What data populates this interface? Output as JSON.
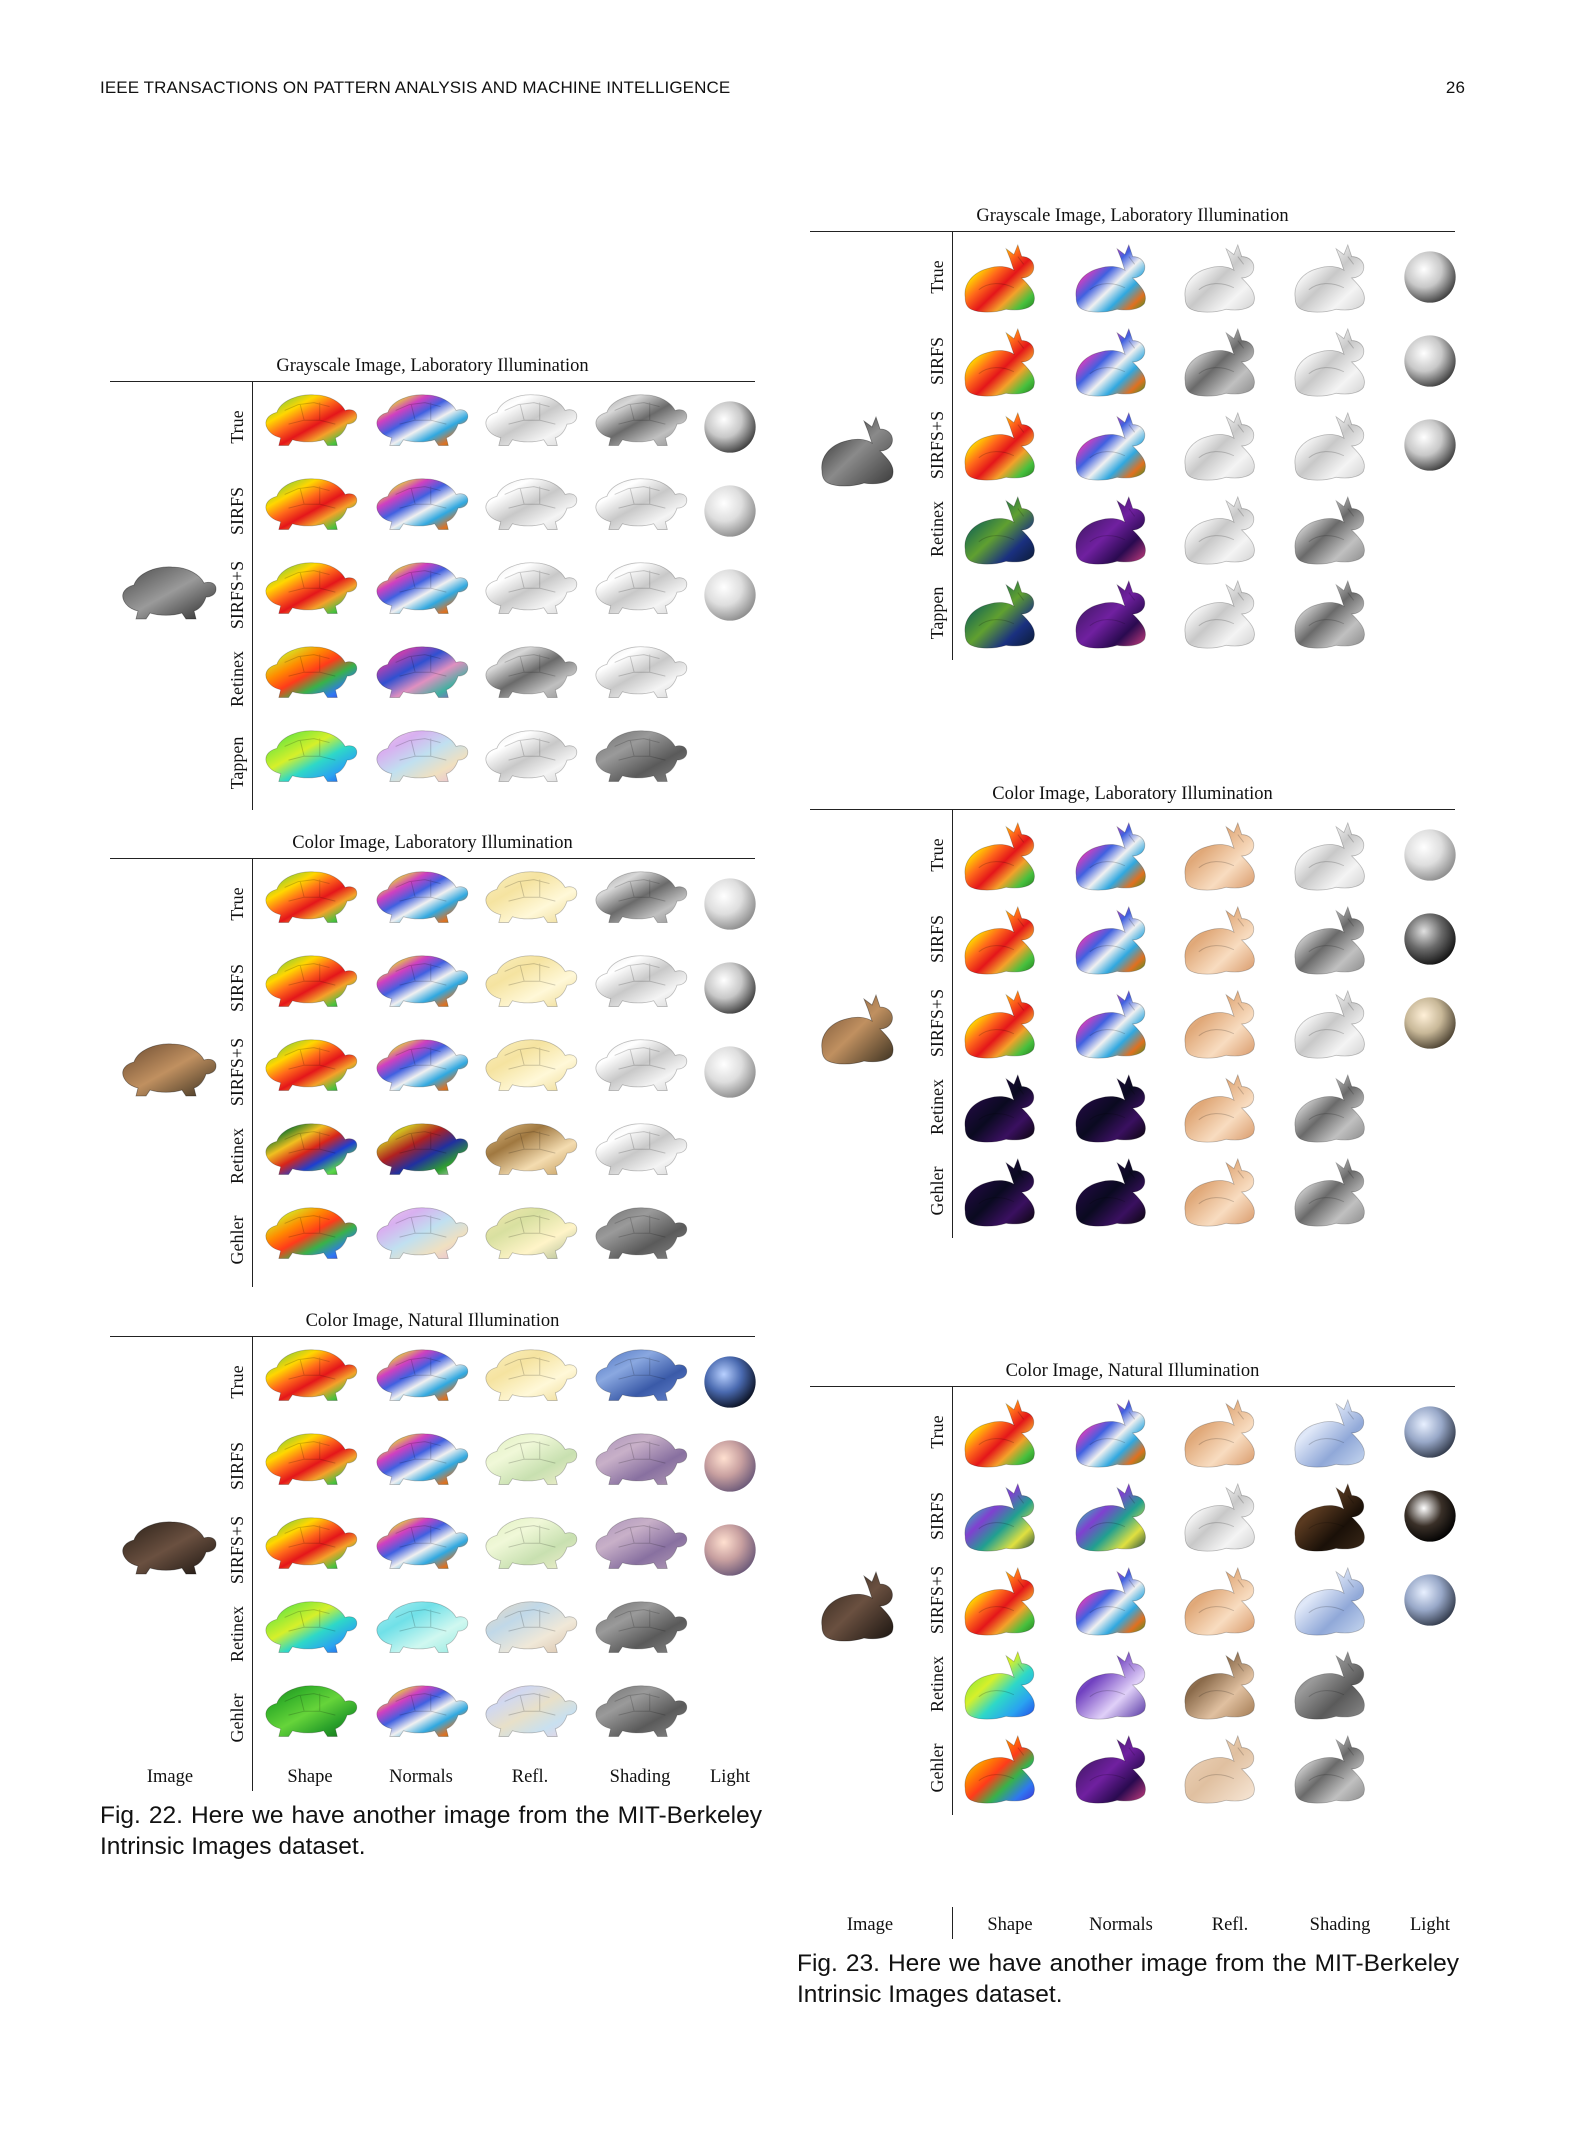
{
  "header": {
    "journal": "IEEE TRANSACTIONS ON PATTERN ANALYSIS AND MACHINE INTELLIGENCE",
    "page_number": "26"
  },
  "figures": [
    {
      "subject": "turtle",
      "caption": "Fig. 22.  Here we have another image from the MIT-Berkeley Intrinsic Images dataset.",
      "column_labels": [
        "Image",
        "Shape",
        "Normals",
        "Refl.",
        "Shading",
        "Light"
      ],
      "panels": [
        {
          "title": "Grayscale Image, Laboratory Illumination",
          "input_style": "gray",
          "rows": [
            {
              "method": "True",
              "shape": "rainbow",
              "normals": "normals",
              "refl": "gray-light",
              "shading": "gray",
              "light": "gray-sphere"
            },
            {
              "method": "SIRFS",
              "shape": "rainbow",
              "normals": "normals",
              "refl": "gray-light",
              "shading": "gray-light",
              "light": "gray-sphere-light"
            },
            {
              "method": "SIRFS+S",
              "shape": "rainbow",
              "normals": "normals",
              "refl": "gray-light",
              "shading": "gray-light",
              "light": "gray-sphere-light"
            },
            {
              "method": "Retinex",
              "shape": "rainbow-blue",
              "normals": "normals-purple",
              "refl": "gray",
              "shading": "gray-light",
              "light": "none"
            },
            {
              "method": "Tappen",
              "shape": "smooth-rainbow",
              "normals": "pastel",
              "refl": "gray-light",
              "shading": "gray-mid",
              "light": "none"
            }
          ]
        },
        {
          "title": "Color Image, Laboratory Illumination",
          "input_style": "brown",
          "rows": [
            {
              "method": "True",
              "shape": "rainbow",
              "normals": "normals",
              "refl": "cream",
              "shading": "gray",
              "light": "gray-sphere-light"
            },
            {
              "method": "SIRFS",
              "shape": "rainbow",
              "normals": "normals",
              "refl": "cream",
              "shading": "gray-light",
              "light": "gray-sphere"
            },
            {
              "method": "SIRFS+S",
              "shape": "rainbow",
              "normals": "normals",
              "refl": "cream",
              "shading": "gray-light",
              "light": "gray-sphere-light"
            },
            {
              "method": "Retinex",
              "shape": "rainbow-dark",
              "normals": "normals-dark",
              "refl": "tan",
              "shading": "gray-light",
              "light": "none"
            },
            {
              "method": "Gehler",
              "shape": "rainbow-blue",
              "normals": "pastel",
              "refl": "cream-green",
              "shading": "gray-mid",
              "light": "none"
            }
          ]
        },
        {
          "title": "Color Image, Natural Illumination",
          "input_style": "dark-brown",
          "rows": [
            {
              "method": "True",
              "shape": "rainbow",
              "normals": "normals",
              "refl": "cream",
              "shading": "blue",
              "light": "blue-sphere"
            },
            {
              "method": "SIRFS",
              "shape": "rainbow",
              "normals": "normals",
              "refl": "pale-green",
              "shading": "mauve",
              "light": "peach-sphere"
            },
            {
              "method": "SIRFS+S",
              "shape": "rainbow",
              "normals": "normals",
              "refl": "pale-green",
              "shading": "mauve",
              "light": "peach-sphere"
            },
            {
              "method": "Retinex",
              "shape": "smooth-rainbow",
              "normals": "cyan",
              "refl": "pale-mixed",
              "shading": "gray-mid",
              "light": "none"
            },
            {
              "method": "Gehler",
              "shape": "green",
              "normals": "normals",
              "refl": "pastel-pink",
              "shading": "gray-mid",
              "light": "none"
            }
          ]
        }
      ]
    },
    {
      "subject": "deer",
      "caption": "Fig. 23.  Here we have another image from the MIT-Berkeley Intrinsic Images dataset.",
      "column_labels": [
        "Image",
        "Shape",
        "Normals",
        "Refl.",
        "Shading",
        "Light"
      ],
      "panels": [
        {
          "title": "Grayscale Image, Laboratory Illumination",
          "input_style": "gray-dark",
          "rows": [
            {
              "method": "True",
              "shape": "rainbow",
              "normals": "normals",
              "refl": "gray-light",
              "shading": "gray-light",
              "light": "gray-sphere"
            },
            {
              "method": "SIRFS",
              "shape": "rainbow",
              "normals": "normals",
              "refl": "gray",
              "shading": "gray-light",
              "light": "gray-sphere"
            },
            {
              "method": "SIRFS+S",
              "shape": "rainbow",
              "normals": "normals",
              "refl": "gray-light",
              "shading": "gray-light",
              "light": "gray-sphere"
            },
            {
              "method": "Retinex",
              "shape": "dark-teal",
              "normals": "dark-purple",
              "refl": "gray-light",
              "shading": "gray",
              "light": "none"
            },
            {
              "method": "Tappen",
              "shape": "dark-teal",
              "normals": "dark-purple",
              "refl": "gray-light",
              "shading": "gray",
              "light": "none"
            }
          ]
        },
        {
          "title": "Color Image, Laboratory Illumination",
          "input_style": "brown",
          "rows": [
            {
              "method": "True",
              "shape": "rainbow",
              "normals": "normals",
              "refl": "fawn",
              "shading": "gray-light",
              "light": "gray-sphere-light"
            },
            {
              "method": "SIRFS",
              "shape": "rainbow",
              "normals": "normals",
              "refl": "fawn",
              "shading": "gray",
              "light": "dark-sphere"
            },
            {
              "method": "SIRFS+S",
              "shape": "rainbow",
              "normals": "normals",
              "refl": "fawn",
              "shading": "gray-light",
              "light": "tan-sphere"
            },
            {
              "method": "Retinex",
              "shape": "black",
              "normals": "black",
              "refl": "fawn",
              "shading": "gray",
              "light": "none"
            },
            {
              "method": "Gehler",
              "shape": "black",
              "normals": "black",
              "refl": "fawn",
              "shading": "gray",
              "light": "none"
            }
          ]
        },
        {
          "title": "Color Image, Natural Illumination",
          "input_style": "dark-brown",
          "rows": [
            {
              "method": "True",
              "shape": "rainbow",
              "normals": "normals",
              "refl": "fawn",
              "shading": "blue-light",
              "light": "blue-gray-sphere"
            },
            {
              "method": "SIRFS",
              "shape": "teal-stripes",
              "normals": "teal-stripes",
              "refl": "gray-light",
              "shading": "dark-brown",
              "light": "black-sphere"
            },
            {
              "method": "SIRFS+S",
              "shape": "rainbow",
              "normals": "normals",
              "refl": "fawn",
              "shading": "blue-light",
              "light": "blue-gray-sphere"
            },
            {
              "method": "Retinex",
              "shape": "smooth-rainbow",
              "normals": "purple",
              "refl": "fawn-dark",
              "shading": "gray-mid",
              "light": "none"
            },
            {
              "method": "Gehler",
              "shape": "rainbow-blue",
              "normals": "dark-purple",
              "refl": "fawn-light",
              "shading": "gray",
              "light": "none"
            }
          ]
        }
      ]
    }
  ]
}
